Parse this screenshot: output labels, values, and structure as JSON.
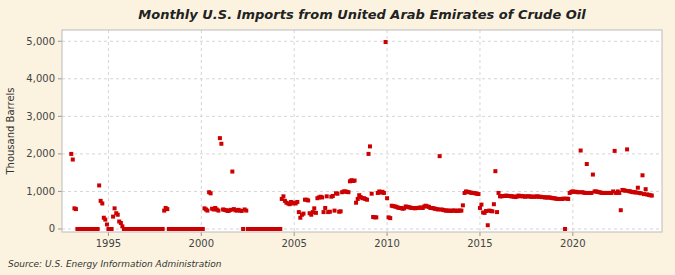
{
  "chart_data": {
    "type": "scatter",
    "title": "Monthly U.S. Imports from United Arab Emirates of Crude Oil",
    "y_label": "Thousand Barrels",
    "source": "Source: U.S. Energy Information Administration",
    "color": "#CC0000",
    "marker": "square",
    "grid": true,
    "xlim": [
      1992.5,
      2024.8
    ],
    "ylim": [
      -80,
      5300
    ],
    "xticks": [
      1995,
      2000,
      2005,
      2010,
      2015,
      2020
    ],
    "yticks": [
      0,
      {
        "value": 1000,
        "label": "1,000"
      },
      {
        "value": 2000,
        "label": "2,000"
      },
      {
        "value": 3000,
        "label": "3,000"
      },
      {
        "value": 4000,
        "label": "4,000"
      },
      {
        "value": 5000,
        "label": "5,000"
      }
    ],
    "x": [
      1993.0,
      1993.08,
      1993.17,
      1993.25,
      1993.33,
      1993.42,
      1993.5,
      1993.58,
      1993.67,
      1993.75,
      1993.83,
      1993.92,
      1994.0,
      1994.08,
      1994.17,
      1994.25,
      1994.33,
      1994.42,
      1994.5,
      1994.58,
      1994.67,
      1994.75,
      1994.83,
      1994.92,
      1995.0,
      1995.08,
      1995.17,
      1995.25,
      1995.33,
      1995.42,
      1995.5,
      1995.58,
      1995.67,
      1995.75,
      1995.83,
      1995.92,
      1996.0,
      1996.08,
      1996.17,
      1996.25,
      1996.33,
      1996.42,
      1996.5,
      1996.58,
      1996.67,
      1996.75,
      1996.83,
      1996.92,
      1997.0,
      1997.08,
      1997.17,
      1997.25,
      1997.33,
      1997.42,
      1997.5,
      1997.58,
      1997.67,
      1997.75,
      1997.83,
      1997.92,
      1998.0,
      1998.08,
      1998.17,
      1998.25,
      1998.33,
      1998.42,
      1998.5,
      1998.58,
      1998.67,
      1998.75,
      1998.83,
      1998.92,
      1999.0,
      1999.08,
      1999.17,
      1999.25,
      1999.33,
      1999.42,
      1999.5,
      1999.58,
      1999.67,
      1999.75,
      1999.83,
      1999.92,
      2000.0,
      2000.08,
      2000.17,
      2000.25,
      2000.33,
      2000.42,
      2000.5,
      2000.58,
      2000.67,
      2000.75,
      2000.83,
      2000.92,
      2001.0,
      2001.08,
      2001.17,
      2001.25,
      2001.33,
      2001.42,
      2001.5,
      2001.58,
      2001.67,
      2001.75,
      2001.83,
      2001.92,
      2002.0,
      2002.08,
      2002.17,
      2002.25,
      2002.33,
      2002.42,
      2002.5,
      2002.58,
      2002.67,
      2002.75,
      2002.83,
      2002.92,
      2003.0,
      2003.08,
      2003.17,
      2003.25,
      2003.33,
      2003.42,
      2003.5,
      2003.58,
      2003.67,
      2003.75,
      2003.83,
      2003.92,
      2004.0,
      2004.08,
      2004.17,
      2004.25,
      2004.33,
      2004.42,
      2004.5,
      2004.58,
      2004.67,
      2004.75,
      2004.83,
      2004.92,
      2005.0,
      2005.08,
      2005.17,
      2005.25,
      2005.33,
      2005.42,
      2005.5,
      2005.58,
      2005.67,
      2005.75,
      2005.83,
      2005.92,
      2006.0,
      2006.08,
      2006.17,
      2006.25,
      2006.33,
      2006.42,
      2006.5,
      2006.58,
      2006.67,
      2006.75,
      2006.83,
      2006.92,
      2007.0,
      2007.08,
      2007.17,
      2007.25,
      2007.33,
      2007.42,
      2007.5,
      2007.58,
      2007.67,
      2007.75,
      2007.83,
      2007.92,
      2008.0,
      2008.08,
      2008.17,
      2008.25,
      2008.33,
      2008.42,
      2008.5,
      2008.58,
      2008.67,
      2008.75,
      2008.83,
      2008.92,
      2009.0,
      2009.08,
      2009.17,
      2009.25,
      2009.33,
      2009.42,
      2009.5,
      2009.58,
      2009.67,
      2009.75,
      2009.83,
      2009.92,
      2010.0,
      2010.08,
      2010.17,
      2010.25,
      2010.33,
      2010.42,
      2010.5,
      2010.58,
      2010.67,
      2010.75,
      2010.83,
      2010.92,
      2011.0,
      2011.08,
      2011.17,
      2011.25,
      2011.33,
      2011.42,
      2011.5,
      2011.58,
      2011.67,
      2011.75,
      2011.83,
      2011.92,
      2012.0,
      2012.08,
      2012.17,
      2012.25,
      2012.33,
      2012.42,
      2012.5,
      2012.58,
      2012.67,
      2012.75,
      2012.83,
      2012.92,
      2013.0,
      2013.08,
      2013.17,
      2013.25,
      2013.33,
      2013.42,
      2013.5,
      2013.58,
      2013.67,
      2013.75,
      2013.83,
      2013.92,
      2014.0,
      2014.08,
      2014.17,
      2014.25,
      2014.33,
      2014.42,
      2014.5,
      2014.58,
      2014.67,
      2014.75,
      2014.83,
      2014.92,
      2015.0,
      2015.08,
      2015.17,
      2015.25,
      2015.33,
      2015.42,
      2015.5,
      2015.58,
      2015.67,
      2015.75,
      2015.83,
      2015.92,
      2016.0,
      2016.08,
      2016.17,
      2016.25,
      2016.33,
      2016.42,
      2016.5,
      2016.58,
      2016.67,
      2016.75,
      2016.83,
      2016.92,
      2017.0,
      2017.08,
      2017.17,
      2017.25,
      2017.33,
      2017.42,
      2017.5,
      2017.58,
      2017.67,
      2017.75,
      2017.83,
      2017.92,
      2018.0,
      2018.08,
      2018.17,
      2018.25,
      2018.33,
      2018.42,
      2018.5,
      2018.58,
      2018.67,
      2018.75,
      2018.83,
      2018.92,
      2019.0,
      2019.08,
      2019.17,
      2019.25,
      2019.33,
      2019.42,
      2019.5,
      2019.58,
      2019.67,
      2019.75,
      2019.83,
      2019.92,
      2020.0,
      2020.08,
      2020.17,
      2020.25,
      2020.33,
      2020.42,
      2020.5,
      2020.58,
      2020.67,
      2020.75,
      2020.83,
      2020.92,
      2021.0,
      2021.08,
      2021.17,
      2021.25,
      2021.33,
      2021.42,
      2021.5,
      2021.58,
      2021.67,
      2021.75,
      2021.83,
      2021.92,
      2022.0,
      2022.08,
      2022.17,
      2022.25,
      2022.33,
      2022.42,
      2022.5,
      2022.58,
      2022.67,
      2022.75,
      2022.83,
      2022.92,
      2023.0,
      2023.08,
      2023.17,
      2023.25,
      2023.33,
      2023.42,
      2023.5,
      2023.58,
      2023.67,
      2023.75,
      2023.83,
      2023.92,
      2024.0,
      2024.08,
      2024.17,
      2024.25
    ],
    "values": [
      2000,
      1850,
      550,
      530,
      0,
      0,
      0,
      0,
      0,
      0,
      0,
      0,
      0,
      0,
      0,
      0,
      0,
      0,
      1160,
      750,
      680,
      300,
      250,
      120,
      0,
      0,
      0,
      330,
      550,
      420,
      380,
      200,
      160,
      70,
      0,
      0,
      0,
      0,
      0,
      0,
      0,
      0,
      0,
      0,
      0,
      0,
      0,
      0,
      0,
      0,
      0,
      0,
      0,
      0,
      0,
      0,
      0,
      0,
      0,
      0,
      490,
      560,
      530,
      0,
      0,
      0,
      0,
      0,
      0,
      0,
      0,
      0,
      0,
      0,
      0,
      0,
      0,
      0,
      0,
      0,
      0,
      0,
      0,
      0,
      0,
      0,
      550,
      520,
      490,
      980,
      950,
      540,
      520,
      560,
      520,
      490,
      2420,
      2270,
      520,
      510,
      500,
      480,
      490,
      510,
      1530,
      530,
      500,
      490,
      510,
      490,
      480,
      0,
      520,
      490,
      0,
      0,
      0,
      0,
      0,
      0,
      0,
      0,
      0,
      0,
      0,
      0,
      0,
      0,
      0,
      0,
      0,
      0,
      0,
      0,
      0,
      0,
      800,
      870,
      750,
      700,
      680,
      660,
      720,
      680,
      700,
      680,
      720,
      450,
      300,
      380,
      410,
      780,
      780,
      760,
      420,
      380,
      450,
      550,
      430,
      820,
      840,
      860,
      840,
      450,
      560,
      870,
      450,
      460,
      860,
      880,
      490,
      950,
      940,
      460,
      470,
      980,
      1000,
      1000,
      990,
      980,
      1270,
      1300,
      1280,
      1290,
      700,
      800,
      900,
      850,
      820,
      820,
      800,
      780,
      2000,
      2200,
      940,
      320,
      310,
      310,
      960,
      1000,
      970,
      990,
      960,
      4980,
      820,
      310,
      290,
      620,
      610,
      600,
      590,
      570,
      560,
      560,
      540,
      550,
      600,
      590,
      580,
      570,
      560,
      560,
      550,
      560,
      560,
      570,
      570,
      560,
      600,
      620,
      600,
      590,
      560,
      560,
      550,
      540,
      530,
      520,
      1940,
      520,
      510,
      500,
      490,
      490,
      490,
      480,
      490,
      490,
      490,
      480,
      490,
      490,
      490,
      630,
      960,
      1000,
      990,
      980,
      970,
      960,
      960,
      950,
      940,
      930,
      560,
      650,
      440,
      430,
      480,
      100,
      490,
      480,
      470,
      660,
      1540,
      450,
      960,
      870,
      870,
      880,
      880,
      890,
      880,
      880,
      870,
      870,
      860,
      850,
      870,
      890,
      870,
      880,
      870,
      860,
      870,
      870,
      870,
      860,
      860,
      860,
      860,
      870,
      860,
      860,
      850,
      850,
      840,
      840,
      840,
      840,
      830,
      820,
      820,
      810,
      800,
      800,
      800,
      800,
      810,
      0,
      810,
      800,
      960,
      990,
      1000,
      990,
      990,
      980,
      980,
      2090,
      980,
      970,
      960,
      1730,
      960,
      960,
      960,
      1450,
      1000,
      1000,
      990,
      980,
      970,
      960,
      960,
      960,
      960,
      960,
      960,
      960,
      1000,
      2080,
      960,
      1000,
      960,
      500,
      1040,
      1030,
      1020,
      2120,
      1010,
      1000,
      990,
      980,
      980,
      970,
      1100,
      960,
      950,
      1430,
      930,
      1060,
      920,
      910,
      900,
      890
    ]
  }
}
